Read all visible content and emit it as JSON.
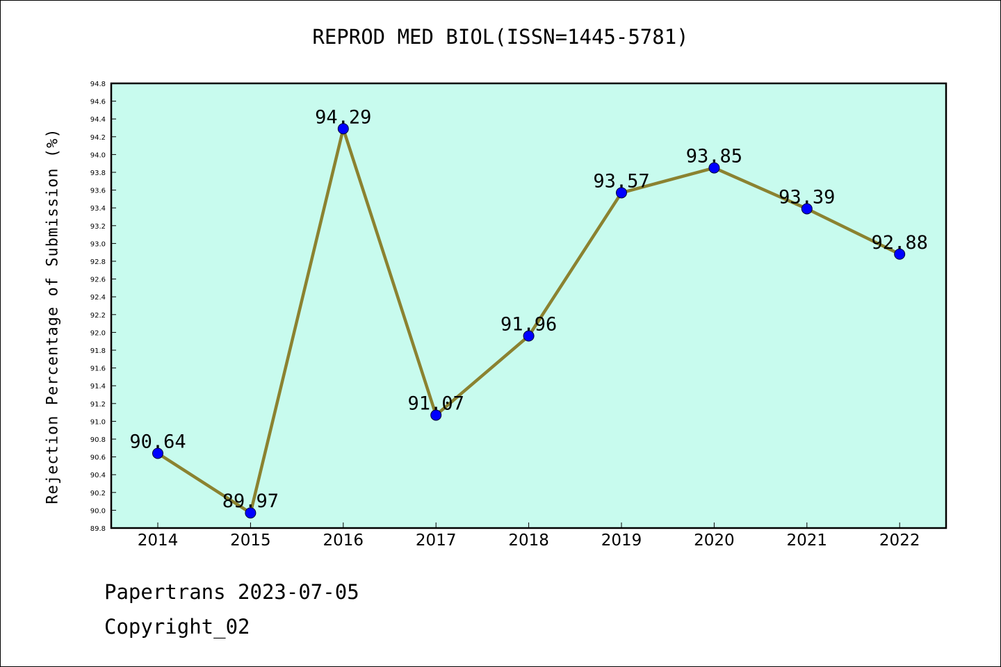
{
  "chart_data": {
    "type": "line",
    "title": "REPROD MED BIOL(ISSN=1445-5781)",
    "xlabel": "",
    "ylabel": "Rejection Percentage of Submission (%)",
    "categories": [
      "2014",
      "2015",
      "2016",
      "2017",
      "2018",
      "2019",
      "2020",
      "2021",
      "2022"
    ],
    "series": [
      {
        "values": [
          90.64,
          89.97,
          94.29,
          91.07,
          91.96,
          93.57,
          93.85,
          93.39,
          92.88
        ]
      }
    ],
    "data_labels": [
      "90.64",
      "89.97",
      "94.29",
      "91.07",
      "91.96",
      "93.57",
      "93.85",
      "93.39",
      "92.88"
    ],
    "ylim": [
      89.8,
      94.8
    ],
    "yticks": [
      "89.8",
      "90.0",
      "90.2",
      "90.4",
      "90.6",
      "90.8",
      "91.0",
      "91.2",
      "91.4",
      "91.6",
      "91.8",
      "92.0",
      "92.2",
      "92.4",
      "92.6",
      "92.8",
      "93.0",
      "93.2",
      "93.4",
      "93.6",
      "93.8",
      "94.0",
      "94.2",
      "94.4",
      "94.6",
      "94.8"
    ],
    "grid": false,
    "colors": {
      "plot_background": "#C8FBEE",
      "line": "#8B8230",
      "marker": "#0000FF"
    }
  },
  "footer": {
    "line1": "Papertrans 2023-07-05",
    "line2": "Copyright_02"
  }
}
